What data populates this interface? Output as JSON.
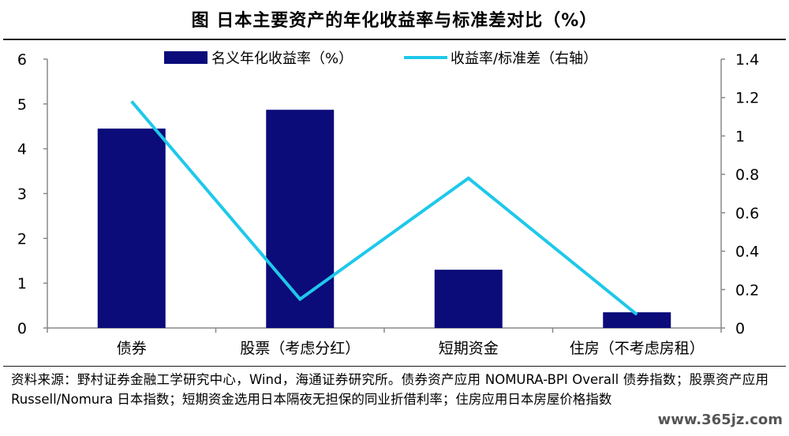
{
  "header": {
    "title": "图    日本主要资产的年化收益率与标准差对比（%）"
  },
  "chart_data": {
    "type": "bar",
    "categories": [
      "债券",
      "股票（考虑分红）",
      "短期资金",
      "住房（不考虑房租）"
    ],
    "series": [
      {
        "name": "名义年化收益率（%）",
        "type": "bar",
        "axis": "left",
        "color": "#0b0b7a",
        "values": [
          4.45,
          4.87,
          1.3,
          0.35
        ]
      },
      {
        "name": "收益率/标准差（右轴）",
        "type": "line",
        "axis": "right",
        "color": "#1ec8ea",
        "values": [
          1.18,
          0.15,
          0.78,
          0.07
        ]
      }
    ],
    "y_left": {
      "min": 0,
      "max": 6,
      "ticks": [
        "0",
        "1",
        "2",
        "3",
        "4",
        "5",
        "6"
      ]
    },
    "y_right": {
      "min": 0,
      "max": 1.4,
      "ticks": [
        "0",
        "0.2",
        "0.4",
        "0.6",
        "0.8",
        "1",
        "1.2",
        "1.4"
      ]
    },
    "legend_position": "top",
    "grid": false
  },
  "footer": {
    "source": "资料来源：野村证券金融工学研究中心，Wind，海通证券研究所。债券资产应用 NOMURA-BPI Overall 债券指数；股票资产应用 Russell/Nomura 日本指数；短期资金选用日本隔夜无担保的同业折借利率；住房应用日本房屋价格指数",
    "watermark": "www.365jz.com"
  }
}
